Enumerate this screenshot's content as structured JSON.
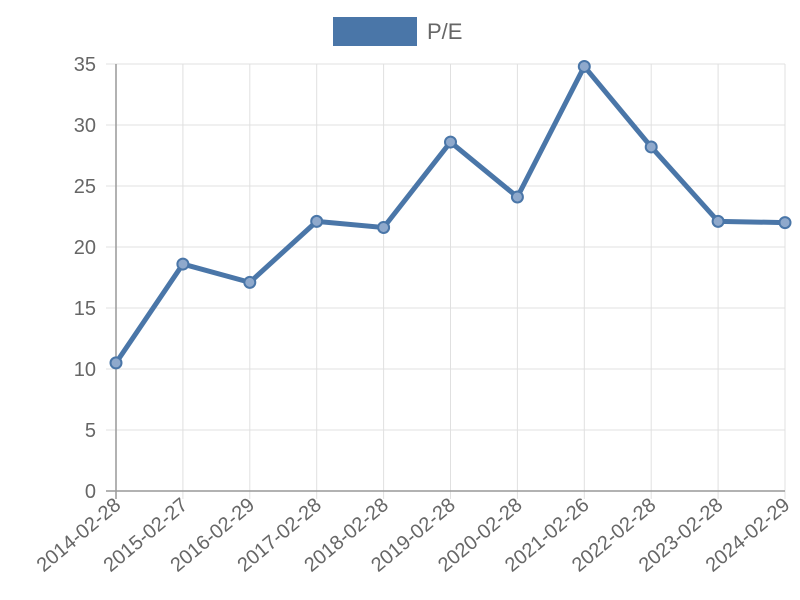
{
  "chart_data": {
    "type": "line",
    "title": "",
    "xlabel": "",
    "ylabel": "",
    "categories": [
      "2014-02-28",
      "2015-02-27",
      "2016-02-29",
      "2017-02-28",
      "2018-02-28",
      "2019-02-28",
      "2020-02-28",
      "2021-02-26",
      "2022-02-28",
      "2023-02-28",
      "2024-02-29"
    ],
    "series": [
      {
        "name": "P/E",
        "values": [
          10.5,
          18.6,
          17.1,
          22.1,
          21.6,
          28.6,
          24.1,
          34.8,
          28.2,
          22.1,
          22.0
        ]
      }
    ],
    "ylim": [
      0,
      35
    ],
    "yticks": [
      0,
      5,
      10,
      15,
      20,
      25,
      30,
      35
    ],
    "grid": true,
    "legend": "top-center",
    "colors": {
      "series": "#4a76a8",
      "grid": "#e0e0e0",
      "axis": "#999999",
      "text": "#666666"
    }
  }
}
